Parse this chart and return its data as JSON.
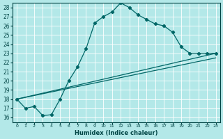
{
  "xlabel": "Humidex (Indice chaleur)",
  "bg_color": "#b3e8e8",
  "line_color": "#006666",
  "grid_color": "#ffffff",
  "xlim": [
    -0.5,
    23.5
  ],
  "ylim": [
    15.5,
    28.5
  ],
  "xticks": [
    0,
    1,
    2,
    3,
    4,
    5,
    6,
    7,
    8,
    9,
    10,
    11,
    12,
    13,
    14,
    15,
    16,
    17,
    18,
    19,
    20,
    21,
    22,
    23
  ],
  "yticks": [
    16,
    17,
    18,
    19,
    20,
    21,
    22,
    23,
    24,
    25,
    26,
    27,
    28
  ],
  "line1_x": [
    0,
    1,
    2,
    3,
    4,
    5,
    6,
    7,
    8,
    9,
    10,
    11,
    12,
    13,
    14,
    15,
    16,
    17,
    18,
    19,
    20,
    21,
    22,
    23
  ],
  "line1_y": [
    18.0,
    17.0,
    17.2,
    16.2,
    16.3,
    18.0,
    20.0,
    21.5,
    23.5,
    26.3,
    27.0,
    27.5,
    28.5,
    28.0,
    27.2,
    26.7,
    26.2,
    26.0,
    25.3,
    23.7,
    23.0,
    23.0,
    23.0,
    23.0
  ],
  "line2_y_start": 18.0,
  "line2_y_end": 23.0,
  "line3_y_start": 18.0,
  "line3_y_end": 22.5
}
